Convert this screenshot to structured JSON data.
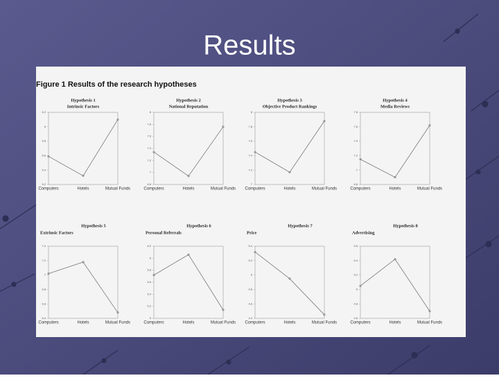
{
  "title": "Results",
  "figure_caption": "Figure 1 Results of the research hypotheses",
  "chart_data": [
    {
      "type": "line",
      "title": "Hypothesis 1",
      "subtitle": "Intrinsic Factors",
      "categories": [
        "Computers",
        "Hotels",
        "Mutual Funds"
      ],
      "values": [
        5.59,
        5.32,
        6.1
      ],
      "ylim": [
        5.2,
        6.2
      ],
      "yticks": [
        5.2,
        5.4,
        5.6,
        5.8,
        6,
        6.2
      ],
      "color": "#777777"
    },
    {
      "type": "line",
      "title": "Hypothesis 2",
      "subtitle": "National Reputation",
      "categories": [
        "Computers",
        "Hotels",
        "Mutual Funds"
      ],
      "values": [
        7.34,
        6.94,
        7.76
      ],
      "ylim": [
        6.8,
        8.0
      ],
      "yticks": [
        6.8,
        7,
        7.2,
        7.4,
        7.6,
        7.8,
        8
      ],
      "color": "#777777"
    },
    {
      "type": "line",
      "title": "Hypothesis 3",
      "subtitle": "Objective Product Rankings",
      "categories": [
        "Computers",
        "Hotels",
        "Mutual Funds"
      ],
      "values": [
        7.45,
        7.17,
        7.88
      ],
      "ylim": [
        7.0,
        8.0
      ],
      "yticks": [
        7,
        7.2,
        7.4,
        7.6,
        7.8,
        8
      ],
      "color": "#777777"
    },
    {
      "type": "line",
      "title": "Hypothesis 4",
      "subtitle": "Media Reviews",
      "categories": [
        "Computers",
        "Hotels",
        "Mutual Funds"
      ],
      "values": [
        7.15,
        6.9,
        7.62
      ],
      "ylim": [
        6.8,
        7.8
      ],
      "yticks": [
        6.8,
        7,
        7.2,
        7.4,
        7.6,
        7.8
      ],
      "color": "#777777"
    },
    {
      "type": "line",
      "title": "Hypothesis 5",
      "subtitle": "Extrinsic Factors",
      "categories": [
        "Computers",
        "Hotels",
        "Mutual Funds"
      ],
      "values": [
        7.02,
        7.18,
        6.48
      ],
      "ylim": [
        6.4,
        7.4
      ],
      "yticks": [
        6.4,
        6.6,
        6.8,
        7,
        7.2,
        7.4
      ],
      "color": "#777777"
    },
    {
      "type": "line",
      "title": "Hypothesis 6",
      "subtitle": "Personal Referrals",
      "categories": [
        "Computers",
        "Hotels",
        "Mutual Funds"
      ],
      "values": [
        5.72,
        6.06,
        5.14
      ],
      "ylim": [
        5.0,
        6.2
      ],
      "yticks": [
        5,
        5.2,
        5.4,
        5.6,
        5.8,
        6,
        6.2
      ],
      "color": "#777777"
    },
    {
      "type": "line",
      "title": "Hypothesis 7",
      "subtitle": "Price",
      "categories": [
        "Computers",
        "Hotels",
        "Mutual Funds"
      ],
      "values": [
        5.32,
        4.95,
        4.45
      ],
      "ylim": [
        4.4,
        5.4
      ],
      "yticks": [
        4.4,
        4.6,
        4.8,
        5,
        5.2,
        5.4
      ],
      "color": "#777777"
    },
    {
      "type": "line",
      "title": "Hypothesis 8",
      "subtitle": "Advertising",
      "categories": [
        "Computers",
        "Hotels",
        "Mutual Funds"
      ],
      "values": [
        5.05,
        5.42,
        4.7
      ],
      "ylim": [
        4.6,
        5.6
      ],
      "yticks": [
        4.6,
        4.8,
        5,
        5.2,
        5.4,
        5.6
      ],
      "color": "#777777"
    }
  ]
}
